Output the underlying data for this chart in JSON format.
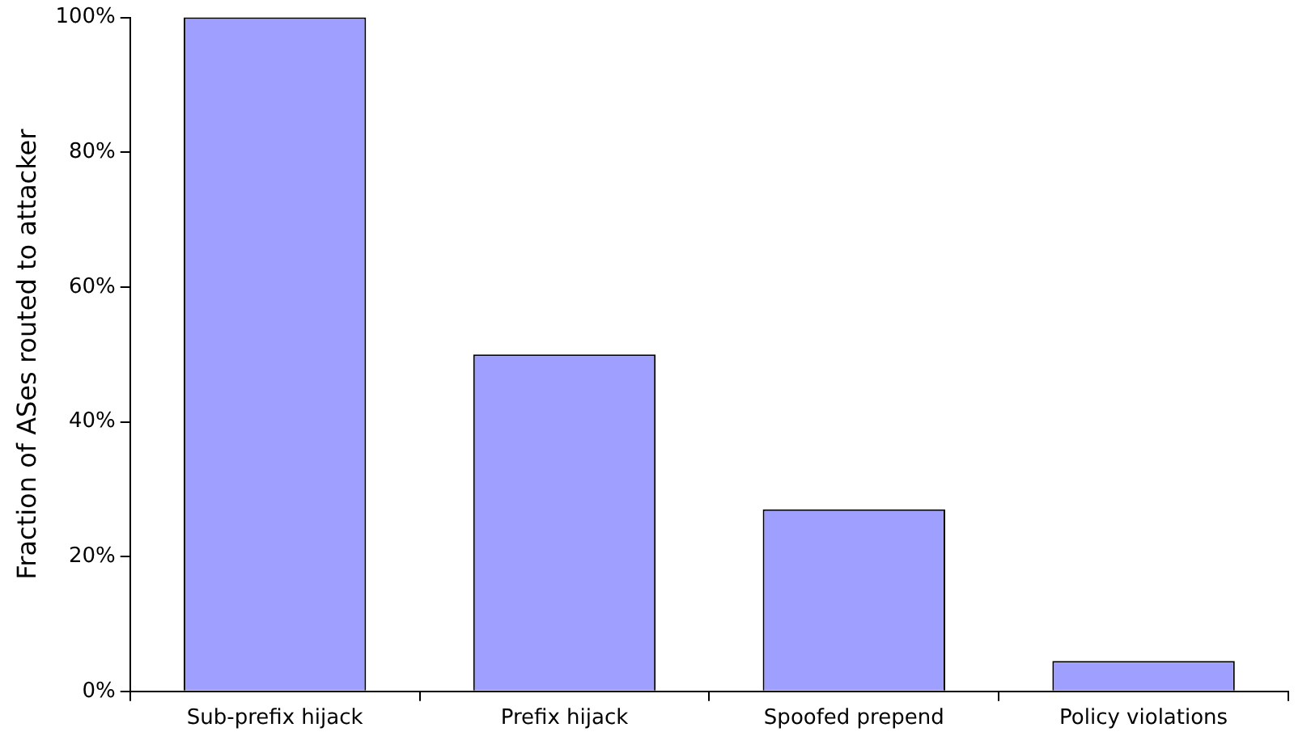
{
  "chart_data": {
    "type": "bar",
    "ylabel": "Fraction of ASes routed to attacker",
    "categories": [
      "Sub-prefix hijack",
      "Prefix hijack",
      "Spoofed prepend",
      "Policy violations"
    ],
    "values": [
      100,
      50,
      27,
      4.5
    ],
    "color": "#9f9fff",
    "ylim": [
      0,
      100
    ],
    "yticks": [
      {
        "value": 0,
        "label": "0%"
      },
      {
        "value": 20,
        "label": "20%"
      },
      {
        "value": 40,
        "label": "40%"
      },
      {
        "value": 60,
        "label": "60%"
      },
      {
        "value": 80,
        "label": "80%"
      },
      {
        "value": 100,
        "label": "100%"
      }
    ],
    "grid": false,
    "legend": false
  }
}
